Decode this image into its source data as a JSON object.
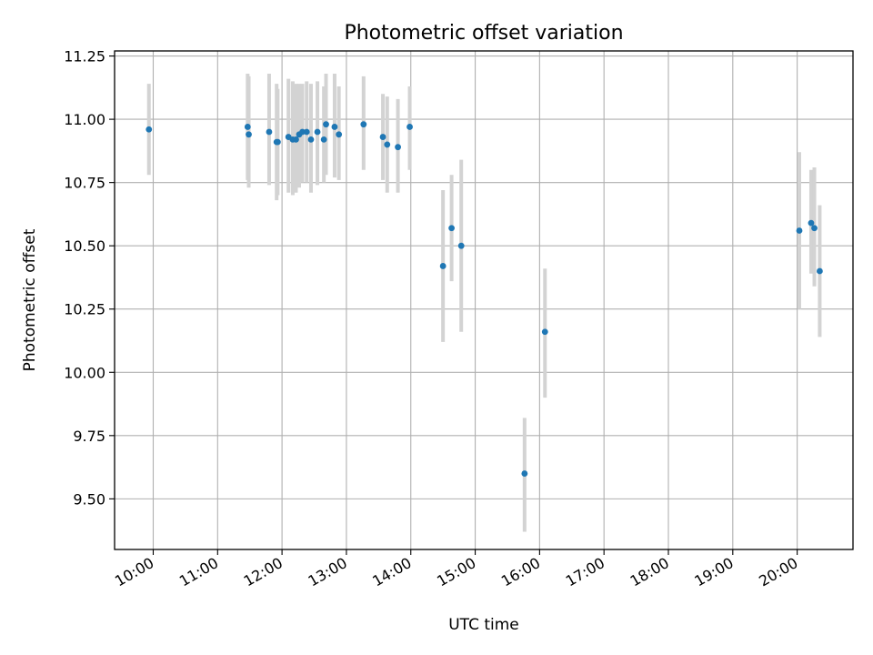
{
  "chart_data": {
    "type": "scatter",
    "title": "Photometric offset variation",
    "xlabel": "UTC time",
    "ylabel": "Photometric offset",
    "x_unit": "UTC time",
    "xlim": [
      "09:24",
      "20:52"
    ],
    "ylim": [
      9.3,
      11.27
    ],
    "x_ticks": [
      "10:00",
      "11:00",
      "12:00",
      "13:00",
      "14:00",
      "15:00",
      "16:00",
      "17:00",
      "18:00",
      "19:00",
      "20:00"
    ],
    "y_ticks": [
      9.5,
      9.75,
      10.0,
      10.25,
      10.5,
      10.75,
      11.0,
      11.25
    ],
    "y_tick_labels": [
      "9.50",
      "9.75",
      "10.00",
      "10.25",
      "10.50",
      "10.75",
      "11.00",
      "11.25"
    ],
    "grid": true,
    "legend": "none",
    "colors": {
      "point": "#1f77b4",
      "errorbar": "#d3d3d3",
      "grid": "#b0b0b0"
    },
    "points": [
      {
        "t": "09:56",
        "y": 10.96,
        "lo": 10.78,
        "hi": 11.14
      },
      {
        "t": "11:28",
        "y": 10.97,
        "lo": 10.76,
        "hi": 11.18
      },
      {
        "t": "11:29",
        "y": 10.94,
        "lo": 10.73,
        "hi": 11.17
      },
      {
        "t": "11:48",
        "y": 10.95,
        "lo": 10.74,
        "hi": 11.18
      },
      {
        "t": "11:55",
        "y": 10.91,
        "lo": 10.68,
        "hi": 11.14
      },
      {
        "t": "11:56",
        "y": 10.91,
        "lo": 10.7,
        "hi": 11.12
      },
      {
        "t": "12:06",
        "y": 10.93,
        "lo": 10.71,
        "hi": 11.16
      },
      {
        "t": "12:10",
        "y": 10.92,
        "lo": 10.7,
        "hi": 11.15
      },
      {
        "t": "12:13",
        "y": 10.92,
        "lo": 10.71,
        "hi": 11.14
      },
      {
        "t": "12:16",
        "y": 10.94,
        "lo": 10.73,
        "hi": 11.14
      },
      {
        "t": "12:19",
        "y": 10.95,
        "lo": 10.75,
        "hi": 11.14
      },
      {
        "t": "12:23",
        "y": 10.95,
        "lo": 10.75,
        "hi": 11.15
      },
      {
        "t": "12:27",
        "y": 10.92,
        "lo": 10.71,
        "hi": 11.14
      },
      {
        "t": "12:33",
        "y": 10.95,
        "lo": 10.74,
        "hi": 11.15
      },
      {
        "t": "12:39",
        "y": 10.92,
        "lo": 10.75,
        "hi": 11.13
      },
      {
        "t": "12:41",
        "y": 10.98,
        "lo": 10.78,
        "hi": 11.18
      },
      {
        "t": "12:49",
        "y": 10.97,
        "lo": 10.77,
        "hi": 11.18
      },
      {
        "t": "12:53",
        "y": 10.94,
        "lo": 10.76,
        "hi": 11.13
      },
      {
        "t": "13:16",
        "y": 10.98,
        "lo": 10.8,
        "hi": 11.17
      },
      {
        "t": "13:34",
        "y": 10.93,
        "lo": 10.76,
        "hi": 11.1
      },
      {
        "t": "13:38",
        "y": 10.9,
        "lo": 10.71,
        "hi": 11.09
      },
      {
        "t": "13:48",
        "y": 10.89,
        "lo": 10.71,
        "hi": 11.08
      },
      {
        "t": "13:59",
        "y": 10.97,
        "lo": 10.8,
        "hi": 11.13
      },
      {
        "t": "14:30",
        "y": 10.42,
        "lo": 10.12,
        "hi": 10.72
      },
      {
        "t": "14:38",
        "y": 10.57,
        "lo": 10.36,
        "hi": 10.78
      },
      {
        "t": "14:47",
        "y": 10.5,
        "lo": 10.16,
        "hi": 10.84
      },
      {
        "t": "15:46",
        "y": 9.6,
        "lo": 9.37,
        "hi": 9.82
      },
      {
        "t": "16:05",
        "y": 10.16,
        "lo": 9.9,
        "hi": 10.41
      },
      {
        "t": "20:02",
        "y": 10.56,
        "lo": 10.25,
        "hi": 10.87
      },
      {
        "t": "20:13",
        "y": 10.59,
        "lo": 10.39,
        "hi": 10.8
      },
      {
        "t": "20:16",
        "y": 10.57,
        "lo": 10.34,
        "hi": 10.81
      },
      {
        "t": "20:21",
        "y": 10.4,
        "lo": 10.14,
        "hi": 10.66
      }
    ]
  }
}
